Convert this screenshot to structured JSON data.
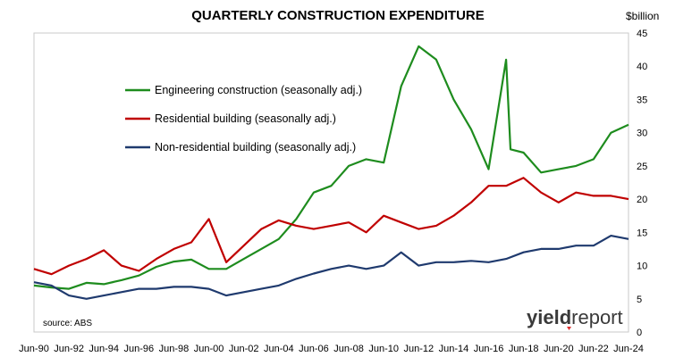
{
  "chart_data": {
    "type": "line",
    "title": "QUARTERLY CONSTRUCTION EXPENDITURE",
    "y_unit": "$billion",
    "ylim": [
      0,
      45
    ],
    "y_ticks": [
      0,
      5,
      10,
      15,
      20,
      25,
      30,
      35,
      40,
      45
    ],
    "x_tick_labels": [
      "Jun-90",
      "Jun-92",
      "Jun-94",
      "Jun-96",
      "Jun-98",
      "Jun-00",
      "Jun-02",
      "Jun-04",
      "Jun-06",
      "Jun-08",
      "Jun-10",
      "Jun-12",
      "Jun-14",
      "Jun-16",
      "Jun-18",
      "Jun-20",
      "Jun-22",
      "Jun-24"
    ],
    "x_range": [
      "Jun-90",
      "Jun-24"
    ],
    "grid": false,
    "legend_position": "top-left",
    "source": "source: ABS",
    "series": [
      {
        "name": "Engineering construction (seasonally adj.)",
        "color": "#1e8c1e",
        "points": [
          [
            "Jun-90",
            7.0
          ],
          [
            "Jun-91",
            6.7
          ],
          [
            "Jun-92",
            6.5
          ],
          [
            "Jun-93",
            7.4
          ],
          [
            "Jun-94",
            7.2
          ],
          [
            "Jun-95",
            7.8
          ],
          [
            "Jun-96",
            8.5
          ],
          [
            "Jun-97",
            9.8
          ],
          [
            "Jun-98",
            10.6
          ],
          [
            "Jun-99",
            10.9
          ],
          [
            "Jun-00",
            9.5
          ],
          [
            "Jun-01",
            9.5
          ],
          [
            "Jun-02",
            11.0
          ],
          [
            "Jun-03",
            12.5
          ],
          [
            "Jun-04",
            14.0
          ],
          [
            "Jun-05",
            17.0
          ],
          [
            "Jun-06",
            21.0
          ],
          [
            "Jun-07",
            22.0
          ],
          [
            "Jun-08",
            25.0
          ],
          [
            "Jun-09",
            26.0
          ],
          [
            "Jun-10",
            25.5
          ],
          [
            "Jun-11",
            37.0
          ],
          [
            "Jun-12",
            43.0
          ],
          [
            "Jun-13",
            41.0
          ],
          [
            "Jun-14",
            35.0
          ],
          [
            "Jun-15",
            30.5
          ],
          [
            "Jun-16",
            24.5
          ],
          [
            "Jun-17",
            41.0
          ],
          [
            "Jun-17b",
            27.5
          ],
          [
            "Jun-18",
            27.0
          ],
          [
            "Jun-19",
            24.0
          ],
          [
            "Jun-20",
            24.5
          ],
          [
            "Jun-21",
            25.0
          ],
          [
            "Jun-22",
            26.0
          ],
          [
            "Jun-23",
            30.0
          ],
          [
            "Jun-24",
            31.2
          ]
        ]
      },
      {
        "name": "Residential building (seasonally adj.)",
        "color": "#c00000",
        "points": [
          [
            "Jun-90",
            9.5
          ],
          [
            "Jun-91",
            8.7
          ],
          [
            "Jun-92",
            10.0
          ],
          [
            "Jun-93",
            11.0
          ],
          [
            "Jun-94",
            12.3
          ],
          [
            "Jun-95",
            10.0
          ],
          [
            "Jun-96",
            9.2
          ],
          [
            "Jun-97",
            11.0
          ],
          [
            "Jun-98",
            12.5
          ],
          [
            "Jun-99",
            13.5
          ],
          [
            "Jun-00",
            17.0
          ],
          [
            "Jun-01",
            10.5
          ],
          [
            "Jun-02",
            13.0
          ],
          [
            "Jun-03",
            15.5
          ],
          [
            "Jun-04",
            16.8
          ],
          [
            "Jun-05",
            16.0
          ],
          [
            "Jun-06",
            15.5
          ],
          [
            "Jun-07",
            16.0
          ],
          [
            "Jun-08",
            16.5
          ],
          [
            "Jun-09",
            15.0
          ],
          [
            "Jun-10",
            17.5
          ],
          [
            "Jun-11",
            16.5
          ],
          [
            "Jun-12",
            15.5
          ],
          [
            "Jun-13",
            16.0
          ],
          [
            "Jun-14",
            17.5
          ],
          [
            "Jun-15",
            19.5
          ],
          [
            "Jun-16",
            22.0
          ],
          [
            "Jun-17",
            22.0
          ],
          [
            "Jun-18",
            23.2
          ],
          [
            "Jun-19",
            21.0
          ],
          [
            "Jun-20",
            19.5
          ],
          [
            "Jun-21",
            21.0
          ],
          [
            "Jun-22",
            20.5
          ],
          [
            "Jun-23",
            20.5
          ],
          [
            "Jun-24",
            20.0
          ]
        ]
      },
      {
        "name": "Non-residential building (seasonally adj.)",
        "color": "#1f3a6e",
        "points": [
          [
            "Jun-90",
            7.5
          ],
          [
            "Jun-91",
            7.0
          ],
          [
            "Jun-92",
            5.5
          ],
          [
            "Jun-93",
            5.0
          ],
          [
            "Jun-94",
            5.5
          ],
          [
            "Jun-95",
            6.0
          ],
          [
            "Jun-96",
            6.5
          ],
          [
            "Jun-97",
            6.5
          ],
          [
            "Jun-98",
            6.8
          ],
          [
            "Jun-99",
            6.8
          ],
          [
            "Jun-00",
            6.5
          ],
          [
            "Jun-01",
            5.5
          ],
          [
            "Jun-02",
            6.0
          ],
          [
            "Jun-03",
            6.5
          ],
          [
            "Jun-04",
            7.0
          ],
          [
            "Jun-05",
            8.0
          ],
          [
            "Jun-06",
            8.8
          ],
          [
            "Jun-07",
            9.5
          ],
          [
            "Jun-08",
            10.0
          ],
          [
            "Jun-09",
            9.5
          ],
          [
            "Jun-10",
            10.0
          ],
          [
            "Jun-11",
            12.0
          ],
          [
            "Jun-12",
            10.0
          ],
          [
            "Jun-13",
            10.5
          ],
          [
            "Jun-14",
            10.5
          ],
          [
            "Jun-15",
            10.7
          ],
          [
            "Jun-16",
            10.5
          ],
          [
            "Jun-17",
            11.0
          ],
          [
            "Jun-18",
            12.0
          ],
          [
            "Jun-19",
            12.5
          ],
          [
            "Jun-20",
            12.5
          ],
          [
            "Jun-21",
            13.0
          ],
          [
            "Jun-22",
            13.0
          ],
          [
            "Jun-23",
            14.5
          ],
          [
            "Jun-24",
            14.0
          ]
        ]
      }
    ]
  },
  "brand": {
    "part1": "yield",
    "part2": "report",
    "accent_color": "#e03030"
  }
}
